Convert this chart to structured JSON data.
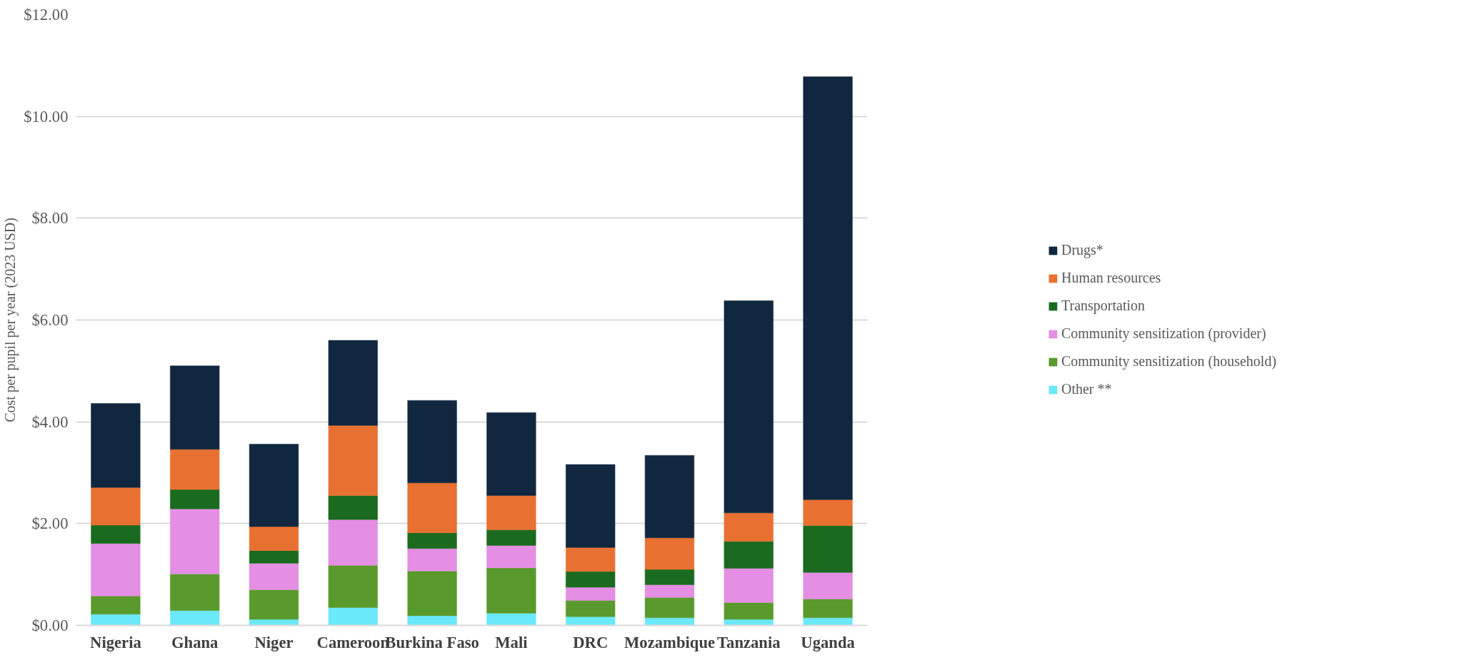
{
  "chart_data": {
    "type": "bar",
    "stacked": true,
    "ylabel": "Cost per pupil per year (2023 USD)",
    "categories": [
      "Nigeria",
      "Ghana",
      "Niger",
      "Cameroon",
      "Burkina Faso",
      "Mali",
      "DRC",
      "Mozambique",
      "Tanzania",
      "Uganda"
    ],
    "series": [
      {
        "name": "Other **",
        "color": "#6be9fb",
        "values": [
          0.22,
          0.29,
          0.12,
          0.35,
          0.19,
          0.24,
          0.17,
          0.15,
          0.12,
          0.15
        ]
      },
      {
        "name": "Community sensitization (household)",
        "color": "#5a9a2c",
        "values": [
          0.36,
          0.72,
          0.58,
          0.83,
          0.88,
          0.89,
          0.32,
          0.4,
          0.33,
          0.37
        ]
      },
      {
        "name": "Community sensitization (provider)",
        "color": "#e48fe3",
        "values": [
          1.03,
          1.28,
          0.52,
          0.9,
          0.44,
          0.44,
          0.26,
          0.25,
          0.67,
          0.52
        ]
      },
      {
        "name": "Transportation",
        "color": "#1a6b1f",
        "values": [
          0.36,
          0.38,
          0.25,
          0.47,
          0.31,
          0.31,
          0.31,
          0.3,
          0.53,
          0.92
        ]
      },
      {
        "name": "Human resources",
        "color": "#e87132",
        "values": [
          0.74,
          0.79,
          0.47,
          1.38,
          0.98,
          0.67,
          0.47,
          0.62,
          0.56,
          0.51
        ]
      },
      {
        "name": "Drugs*",
        "color": "#10273f",
        "values": [
          1.65,
          1.64,
          1.62,
          1.67,
          1.62,
          1.63,
          1.63,
          1.62,
          4.17,
          8.31
        ]
      }
    ],
    "ylim": [
      0,
      12
    ],
    "yticks": [
      {
        "value": 0,
        "label": "$0.00"
      },
      {
        "value": 2,
        "label": "$2.00"
      },
      {
        "value": 4,
        "label": "$4.00"
      },
      {
        "value": 6,
        "label": "$6.00"
      },
      {
        "value": 8,
        "label": "$8.00"
      },
      {
        "value": 10,
        "label": "$10.00"
      },
      {
        "value": 12,
        "label": "$12.00"
      }
    ],
    "grid": "y",
    "legend": "right"
  }
}
